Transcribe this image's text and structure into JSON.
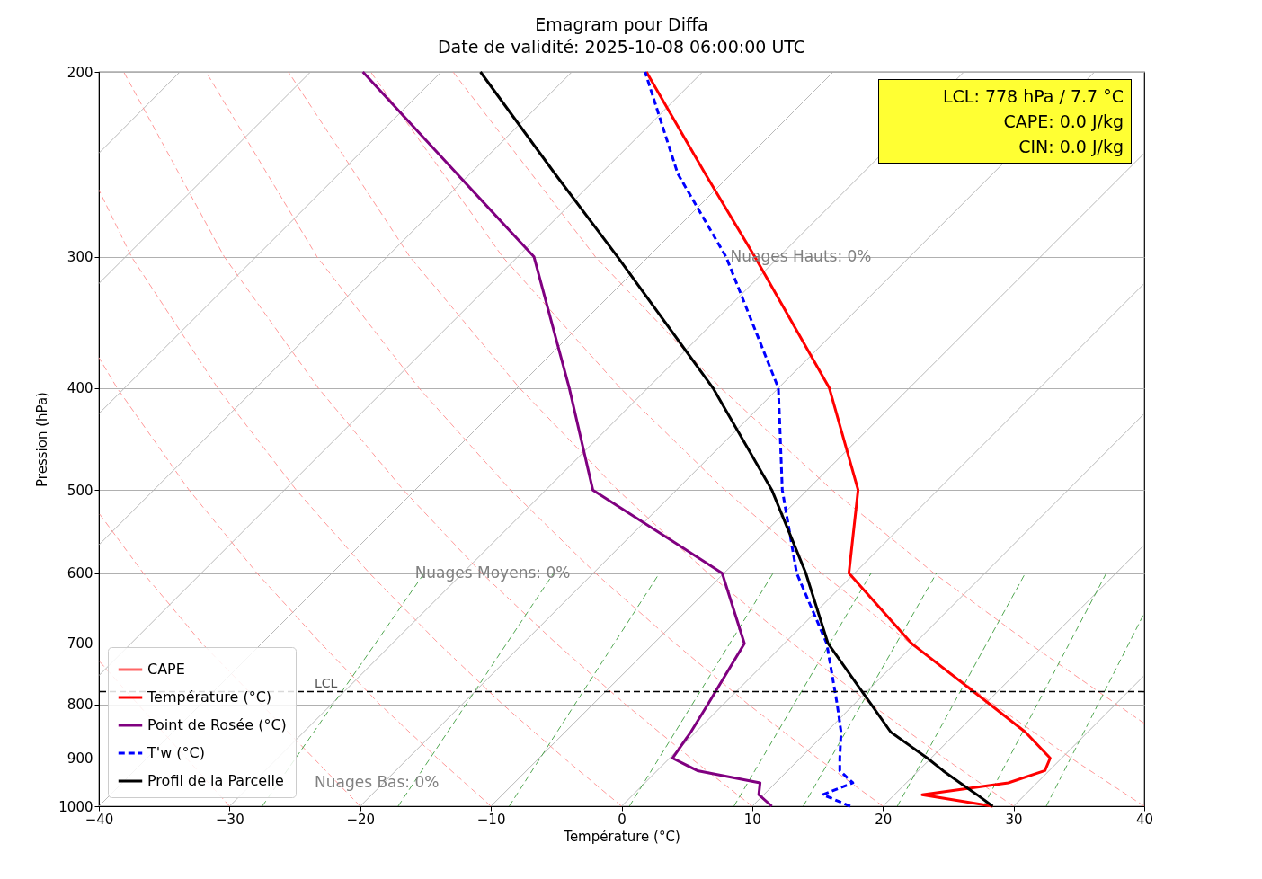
{
  "chart_data": {
    "type": "line",
    "title": "Emagram pour Diffa",
    "subtitle": "Date de validité: 2025-10-08 06:00:00 UTC",
    "xlabel": "Température (°C)",
    "ylabel": "Pression (hPa)",
    "log": "y",
    "grid": "y",
    "legend": "bottom left",
    "xlim": [
      -40,
      40
    ],
    "xticks": [
      {
        "value": -40,
        "label": "−40"
      },
      {
        "value": -30,
        "label": "−30"
      },
      {
        "value": -20,
        "label": "−20"
      },
      {
        "value": -10,
        "label": "−10"
      },
      0,
      10,
      20,
      30,
      40
    ],
    "ylim": [
      1000,
      200
    ],
    "yticks": [
      1000,
      900,
      800,
      700,
      600,
      500,
      400,
      300,
      200
    ],
    "ref_lines": [
      {
        "axis": "y",
        "value": 778,
        "label": "LCL",
        "color": "#000000",
        "line_style": "dashed"
      }
    ],
    "annotations": [
      "LCL: 778 hPa / 7.7 °C",
      "CAPE: 0.0 J/kg",
      "CIN: 0.0 J/kg",
      "Nuages Hauts: 0%",
      "Nuages Moyens: 0%",
      "Nuages Bas: 0%"
    ],
    "series": [
      {
        "color": "#b0b0b0",
        "line_style": "solid",
        "x": [
          -40,
          -33.8
        ],
        "values": [
          239,
          200
        ]
      },
      {
        "color": "#b0b0b0",
        "line_style": "solid",
        "x": [
          -40,
          -23.8
        ],
        "values": [
          318,
          200
        ]
      },
      {
        "color": "#b0b0b0",
        "line_style": "solid",
        "x": [
          -40,
          -13.8
        ],
        "values": [
          423,
          200
        ]
      },
      {
        "color": "#b0b0b0",
        "line_style": "solid",
        "x": [
          -40,
          -3.8
        ],
        "values": [
          564,
          200
        ]
      },
      {
        "color": "#b0b0b0",
        "line_style": "solid",
        "x": [
          -40,
          6.2
        ],
        "values": [
          751,
          200
        ]
      },
      {
        "color": "#b0b0b0",
        "line_style": "solid",
        "x": [
          -40,
          16.2
        ],
        "values": [
          1000,
          200
        ]
      },
      {
        "color": "#b0b0b0",
        "line_style": "solid",
        "x": [
          -30,
          26.2
        ],
        "values": [
          1000,
          200
        ]
      },
      {
        "color": "#b0b0b0",
        "line_style": "solid",
        "x": [
          -20,
          36.2
        ],
        "values": [
          1000,
          200
        ]
      },
      {
        "color": "#b0b0b0",
        "line_style": "solid",
        "x": [
          -10,
          40
        ],
        "values": [
          1000,
          239
        ]
      },
      {
        "color": "#b0b0b0",
        "line_style": "solid",
        "x": [
          0,
          40
        ],
        "values": [
          1000,
          318
        ]
      },
      {
        "color": "#b0b0b0",
        "line_style": "solid",
        "x": [
          10,
          40
        ],
        "values": [
          1000,
          423
        ]
      },
      {
        "color": "#b0b0b0",
        "line_style": "solid",
        "x": [
          20,
          40
        ],
        "values": [
          1000,
          564
        ]
      },
      {
        "color": "#b0b0b0",
        "line_style": "solid",
        "x": [
          30,
          40
        ],
        "values": [
          1000,
          751
        ]
      },
      {
        "color": "#ff8c8c",
        "line_style": "dashed",
        "x": [
          -30,
          -40
        ],
        "values": [
          1000,
          727
        ]
      },
      {
        "color": "#ff8c8c",
        "line_style": "dashed",
        "x": [
          -20,
          -32.1,
          -36.6,
          -40
        ],
        "values": [
          1000,
          700,
          600,
          526
        ]
      },
      {
        "color": "#ff8c8c",
        "line_style": "dashed",
        "x": [
          -10,
          -14.1,
          -18.5,
          -23.0,
          -27.9,
          -33.1,
          -38.6,
          -40
        ],
        "values": [
          1000,
          900,
          800,
          700,
          600,
          500,
          400,
          374
        ]
      },
      {
        "color": "#ff8c8c",
        "line_style": "dashed",
        "x": [
          0,
          -4.4,
          -9.1,
          -14.0,
          -19.3,
          -24.9,
          -30.9,
          -37.5,
          -40
        ],
        "values": [
          1000,
          900,
          800,
          700,
          600,
          500,
          400,
          300,
          259
        ]
      },
      {
        "color": "#ff8c8c",
        "line_style": "dashed",
        "x": [
          10,
          5.3,
          0.3,
          -5.0,
          -10.7,
          -16.7,
          -23.2,
          -30.4,
          -38.1
        ],
        "values": [
          1000,
          900,
          800,
          700,
          600,
          500,
          400,
          300,
          200
        ]
      },
      {
        "color": "#ff8c8c",
        "line_style": "dashed",
        "x": [
          20,
          15.0,
          9.7,
          4.1,
          -2.0,
          -8.5,
          -15.5,
          -23.3,
          -31.8
        ],
        "values": [
          1000,
          900,
          800,
          700,
          600,
          500,
          400,
          300,
          200
        ]
      },
      {
        "color": "#ff8c8c",
        "line_style": "dashed",
        "x": [
          30,
          24.7,
          19.1,
          13.1,
          6.6,
          -0.3,
          -7.8,
          -16.2,
          -25.5
        ],
        "values": [
          1000,
          900,
          800,
          700,
          600,
          500,
          400,
          300,
          200
        ]
      },
      {
        "color": "#ff8c8c",
        "line_style": "dashed",
        "x": [
          40,
          34.4,
          28.5,
          22.1,
          15.3,
          7.9,
          -0.1,
          -9.1,
          -19.2
        ],
        "values": [
          1000,
          900,
          800,
          700,
          600,
          500,
          400,
          300,
          200
        ]
      },
      {
        "color": "#ff8c8c",
        "line_style": "dashed",
        "x": [
          40,
          37.9,
          31.2,
          23.9,
          16.1,
          7.6,
          -2.0,
          -12.9
        ],
        "values": [
          834,
          800,
          700,
          600,
          500,
          400,
          300,
          200
        ]
      },
      {
        "color": "#3c9c3c",
        "line_style": "dashed",
        "x": [
          -27.5,
          -15.1
        ],
        "values": [
          1000,
          600
        ]
      },
      {
        "color": "#3c9c3c",
        "line_style": "dashed",
        "x": [
          -17.1,
          -5.2
        ],
        "values": [
          1000,
          600
        ]
      },
      {
        "color": "#3c9c3c",
        "line_style": "dashed",
        "x": [
          -8.6,
          2.9
        ],
        "values": [
          1000,
          600
        ]
      },
      {
        "color": "#3c9c3c",
        "line_style": "dashed",
        "x": [
          0.6,
          11.6
        ],
        "values": [
          1000,
          600
        ]
      },
      {
        "color": "#3c9c3c",
        "line_style": "dashed",
        "x": [
          8.6,
          19.1
        ],
        "values": [
          1000,
          600
        ]
      },
      {
        "color": "#3c9c3c",
        "line_style": "dashed",
        "x": [
          13.9,
          24.1
        ],
        "values": [
          1000,
          600
        ]
      },
      {
        "color": "#3c9c3c",
        "line_style": "dashed",
        "x": [
          21.1,
          30.9
        ],
        "values": [
          1000,
          600
        ]
      },
      {
        "color": "#3c9c3c",
        "line_style": "dashed",
        "x": [
          27.7,
          37.1
        ],
        "values": [
          1000,
          600
        ]
      },
      {
        "color": "#3c9c3c",
        "line_style": "dashed",
        "x": [
          32.5,
          40
        ],
        "values": [
          1000,
          655
        ]
      },
      {
        "name": "CAPE",
        "type": "area",
        "color": "#ff6666"
      },
      {
        "name": "Température (°C)",
        "color": "#ff0000",
        "line_style": "solid",
        "x": [
          28.4,
          23.0,
          29.6,
          32.4,
          32.8,
          30.9,
          28.2,
          22.2,
          17.4,
          18.1,
          15.9,
          10.2,
          6.4,
          1.9
        ],
        "values": [
          1000,
          975,
          950,
          925,
          900,
          850,
          800,
          700,
          600,
          500,
          400,
          300,
          250,
          200
        ]
      },
      {
        "name": "Point de Rosée (°C)",
        "color": "#800080",
        "line_style": "solid",
        "x": [
          11.5,
          10.5,
          10.6,
          5.8,
          3.9,
          5.3,
          6.6,
          9.4,
          7.7,
          -2.2,
          -4.0,
          -6.7,
          -12.6,
          -19.8
        ],
        "values": [
          1000,
          975,
          950,
          925,
          900,
          850,
          800,
          700,
          600,
          500,
          400,
          300,
          250,
          200
        ]
      },
      {
        "name": "T'w (°C)",
        "color": "#0000ff",
        "line_style": "dashed",
        "x": [
          17.5,
          15.4,
          17.7,
          16.7,
          16.7,
          16.8,
          16.5,
          15.7,
          13.4,
          12.3,
          12.0,
          8.0,
          4.3,
          1.8
        ],
        "values": [
          1000,
          975,
          950,
          925,
          900,
          850,
          800,
          700,
          600,
          500,
          400,
          300,
          250,
          200
        ]
      },
      {
        "name": "Profil de la Parcelle",
        "color": "#000000",
        "line_style": "solid",
        "x": [
          28.4,
          27.2,
          25.9,
          24.6,
          23.4,
          20.6,
          19.1,
          15.8,
          14.1,
          11.5,
          7.0,
          -0.3,
          -5.1,
          -10.8
        ],
        "values": [
          1000,
          975,
          950,
          925,
          900,
          850,
          800,
          700,
          600,
          500,
          400,
          300,
          250,
          200
        ]
      }
    ]
  }
}
